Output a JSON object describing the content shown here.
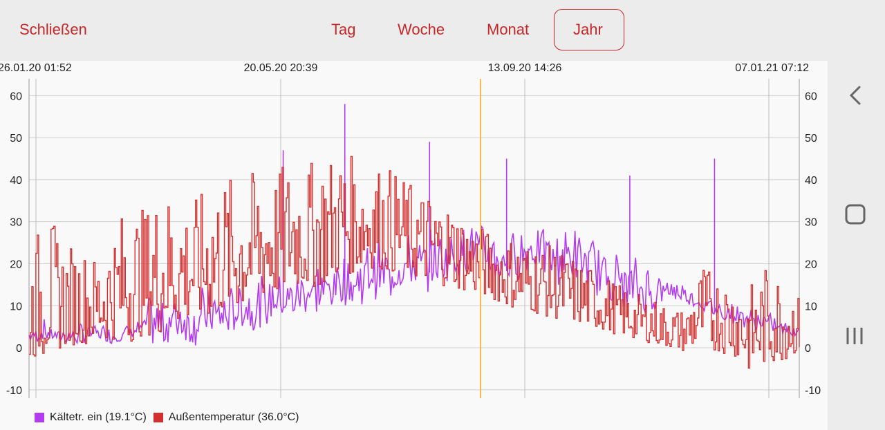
{
  "header": {
    "close_label": "Schließen",
    "tabs": [
      {
        "label": "Tag",
        "active": false
      },
      {
        "label": "Woche",
        "active": false
      },
      {
        "label": "Monat",
        "active": false
      },
      {
        "label": "Jahr",
        "active": true
      }
    ]
  },
  "nav": {
    "back_icon": "chevron-left-icon",
    "home_icon": "rounded-square-icon",
    "recents_icon": "three-bars-icon"
  },
  "chart_data": {
    "type": "line",
    "x_tick_labels": [
      "26.01.20 01:52",
      "20.05.20 20:39",
      "13.09.20 14:26",
      "07.01.21 07:12"
    ],
    "ylim": [
      -12,
      64
    ],
    "y_ticks": [
      -10,
      0,
      10,
      20,
      30,
      40,
      50,
      60
    ],
    "grid": true,
    "cursor_line": "orange vertical marker",
    "legend_placement": "bottom-left",
    "series": [
      {
        "name": "Kältetr. ein (19.1°C)",
        "color": "#b43cf0",
        "values": [
          2,
          3,
          2,
          2,
          3,
          2,
          3,
          4,
          3,
          5,
          4,
          6,
          5,
          8,
          7,
          10,
          9,
          12,
          11,
          14,
          13,
          16,
          15,
          18,
          17,
          19,
          20,
          22,
          20,
          18,
          20,
          22,
          19,
          20,
          18,
          16,
          14,
          12,
          11,
          13,
          12,
          10,
          8,
          7,
          6,
          5,
          4,
          3
        ],
        "spikes": [
          [
            33,
            47
          ],
          [
            41,
            58
          ],
          [
            52,
            49
          ],
          [
            62,
            45
          ],
          [
            78,
            41
          ],
          [
            89,
            45
          ]
        ]
      },
      {
        "name": "Außentemperatur (36.0°C)",
        "color": "#d32f2f",
        "values": [
          1,
          2,
          1,
          3,
          2,
          4,
          3,
          6,
          5,
          8,
          7,
          10,
          9,
          12,
          11,
          14,
          13,
          16,
          15,
          18,
          17,
          20,
          19,
          22,
          21,
          23,
          22,
          21,
          20,
          19,
          18,
          17,
          15,
          13,
          11,
          9,
          7,
          6,
          5,
          4,
          3,
          2,
          1,
          0,
          -2,
          1,
          0,
          2
        ],
        "upper_envelope": [
          22,
          34,
          25,
          24,
          22,
          28,
          35,
          33,
          38,
          37,
          35,
          39,
          41,
          40,
          43,
          42,
          45,
          44,
          46,
          47,
          45,
          44,
          43,
          40,
          38,
          36,
          34,
          30,
          28,
          27,
          26,
          25,
          24,
          22,
          20,
          18,
          15,
          13,
          12,
          10,
          9,
          20,
          18,
          16,
          15,
          20,
          18,
          12
        ],
        "lower_envelope": [
          -3,
          -2,
          0,
          1,
          1,
          2,
          1,
          3,
          3,
          5,
          6,
          7,
          8,
          9,
          11,
          12,
          14,
          14,
          15,
          17,
          18,
          19,
          18,
          17,
          16,
          15,
          14,
          13,
          12,
          10,
          9,
          8,
          7,
          6,
          5,
          4,
          3,
          2,
          1,
          0,
          -1,
          0,
          -1,
          -2,
          -6,
          -4,
          -3,
          -1
        ]
      }
    ]
  }
}
